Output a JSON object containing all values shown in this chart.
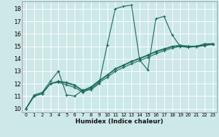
{
  "xlabel": "Humidex (Indice chaleur)",
  "ylabel": "",
  "xlim": [
    -0.5,
    23.5
  ],
  "ylim": [
    9.7,
    18.6
  ],
  "xticks": [
    0,
    1,
    2,
    3,
    4,
    5,
    6,
    7,
    8,
    9,
    10,
    11,
    12,
    13,
    14,
    15,
    16,
    17,
    18,
    19,
    20,
    21,
    22,
    23
  ],
  "yticks": [
    10,
    11,
    12,
    13,
    14,
    15,
    16,
    17,
    18
  ],
  "background_color": "#cce8e8",
  "grid_color": "#ffffff",
  "line_color": "#1a6b5a",
  "series": [
    {
      "x": [
        0,
        1,
        2,
        3,
        4,
        4,
        5,
        6,
        7,
        8,
        9,
        10,
        11,
        12,
        13,
        14,
        15,
        16,
        17,
        18,
        19,
        20,
        21,
        22,
        23
      ],
      "y": [
        10,
        11.1,
        11.3,
        12.2,
        13.0,
        13.0,
        11.1,
        11.0,
        11.5,
        11.5,
        12.0,
        15.1,
        18.0,
        18.2,
        18.3,
        13.9,
        13.1,
        17.2,
        17.4,
        15.9,
        15.0,
        14.9,
        15.0,
        15.2,
        15.2
      ]
    },
    {
      "x": [
        0,
        1,
        2,
        3,
        4,
        5,
        6,
        7,
        8,
        9,
        10,
        11,
        12,
        13,
        14,
        15,
        16,
        17,
        18,
        19,
        20,
        21,
        22,
        23
      ],
      "y": [
        10,
        11.0,
        11.2,
        12.0,
        12.1,
        11.9,
        11.7,
        11.3,
        11.6,
        12.1,
        12.5,
        13.0,
        13.3,
        13.6,
        13.85,
        14.1,
        14.4,
        14.65,
        14.85,
        15.0,
        14.95,
        14.95,
        15.05,
        15.15
      ]
    },
    {
      "x": [
        0,
        1,
        2,
        3,
        4,
        5,
        6,
        7,
        8,
        9,
        10,
        11,
        12,
        13,
        14,
        15,
        16,
        17,
        18,
        19,
        20,
        21,
        22,
        23
      ],
      "y": [
        10,
        11.0,
        11.2,
        12.0,
        12.15,
        12.05,
        11.85,
        11.4,
        11.7,
        12.2,
        12.65,
        13.15,
        13.45,
        13.75,
        14.0,
        14.25,
        14.55,
        14.75,
        14.95,
        15.05,
        14.98,
        14.98,
        15.08,
        15.18
      ]
    },
    {
      "x": [
        0,
        1,
        2,
        3,
        4,
        5,
        6,
        7,
        8,
        9,
        10,
        11,
        12,
        13,
        14,
        15,
        16,
        17,
        18,
        19,
        20,
        21,
        22,
        23
      ],
      "y": [
        10,
        11.0,
        11.2,
        12.0,
        12.2,
        12.1,
        11.9,
        11.45,
        11.75,
        12.25,
        12.7,
        13.2,
        13.5,
        13.8,
        14.05,
        14.3,
        14.6,
        14.8,
        15.0,
        15.08,
        15.01,
        15.01,
        15.11,
        15.21
      ]
    }
  ]
}
